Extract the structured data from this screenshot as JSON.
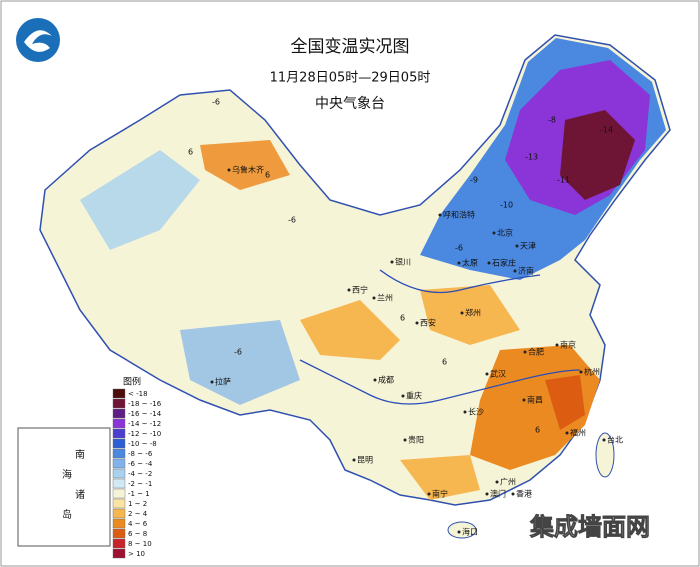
{
  "header": {
    "title": "全国变温实况图",
    "subtitle": "11月28日05时—29日05时",
    "source": "中央气象台"
  },
  "legend": {
    "title": "图例",
    "items": [
      {
        "label": "< -18",
        "color": "#4e0d0d"
      },
      {
        "label": "-18 ~ -16",
        "color": "#6e1535"
      },
      {
        "label": "-16 ~ -14",
        "color": "#5f1d86"
      },
      {
        "label": "-14 ~ -12",
        "color": "#8b35d8"
      },
      {
        "label": "-12 ~ -10",
        "color": "#4a3fcf"
      },
      {
        "label": "-10 ~ -8",
        "color": "#2e5ed6"
      },
      {
        "label": "-8 ~ -6",
        "color": "#4b88e0"
      },
      {
        "label": "-6 ~ -4",
        "color": "#7fb3ea"
      },
      {
        "label": "-4 ~ -2",
        "color": "#a9d2ef"
      },
      {
        "label": "-2 ~ -1",
        "color": "#d2e9f4"
      },
      {
        "label": "-1 ~ 1",
        "color": "#f6f4d6"
      },
      {
        "label": "1 ~ 2",
        "color": "#fbe3a4"
      },
      {
        "label": "2 ~ 4",
        "color": "#f6b650"
      },
      {
        "label": "4 ~ 6",
        "color": "#ec8a22"
      },
      {
        "label": "6 ~ 8",
        "color": "#dc5d12"
      },
      {
        "label": "8 ~ 10",
        "color": "#c8232a"
      },
      {
        "label": "> 10",
        "color": "#9e1030"
      }
    ]
  },
  "cities": [
    "乌鲁木齐",
    "呼和浩特",
    "银川",
    "西宁",
    "兰州",
    "太原",
    "石家庄",
    "北京",
    "天津",
    "济南",
    "郑州",
    "西安",
    "成都",
    "拉萨",
    "合肥",
    "南京",
    "武汉",
    "杭州",
    "长沙",
    "南昌",
    "福州",
    "重庆",
    "贵阳",
    "昆明",
    "南宁",
    "广州",
    "香港",
    "澳门",
    "海口",
    "台北"
  ],
  "map_values": [
    "-6",
    "6",
    "-6",
    "6",
    "-6",
    "6",
    "-14",
    "-13",
    "-11",
    "-10",
    "-9",
    "-8",
    "6",
    "6",
    "-6"
  ],
  "inset": {
    "label": [
      "南",
      "海",
      "诸",
      "岛"
    ]
  },
  "watermark": "集成墙面网"
}
